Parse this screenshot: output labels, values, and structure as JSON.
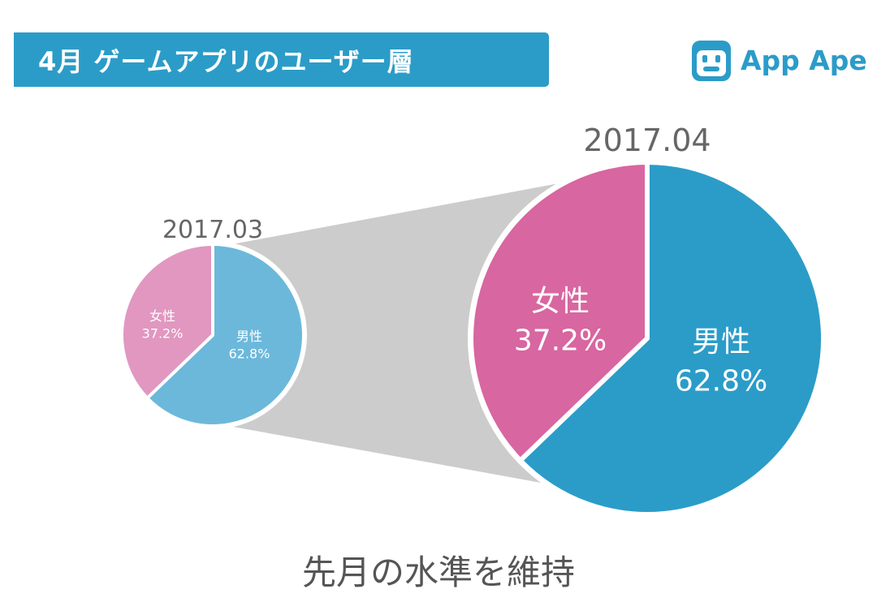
{
  "header": {
    "title": "4月 ゲームアプリのユーザー層",
    "brand": "App Ape",
    "brand_icon": "app-ape-logo-icon"
  },
  "colors": {
    "accent": "#2b9cc8",
    "male_small": "#6cb8db",
    "female_small": "#e197c0",
    "male_large": "#2b9cc8",
    "female_large": "#d866a0",
    "connector": "#cccccc",
    "date_label": "#666666"
  },
  "chart_data": [
    {
      "type": "pie",
      "title": "2017.03",
      "slices": [
        {
          "label": "男性",
          "value": 62.8,
          "display": "62.8%"
        },
        {
          "label": "女性",
          "value": 37.2,
          "display": "37.2%"
        }
      ]
    },
    {
      "type": "pie",
      "title": "2017.04",
      "slices": [
        {
          "label": "男性",
          "value": 62.8,
          "display": "62.8%"
        },
        {
          "label": "女性",
          "value": 37.2,
          "display": "37.2%"
        }
      ]
    }
  ],
  "footer": {
    "caption": "先月の水準を維持"
  }
}
